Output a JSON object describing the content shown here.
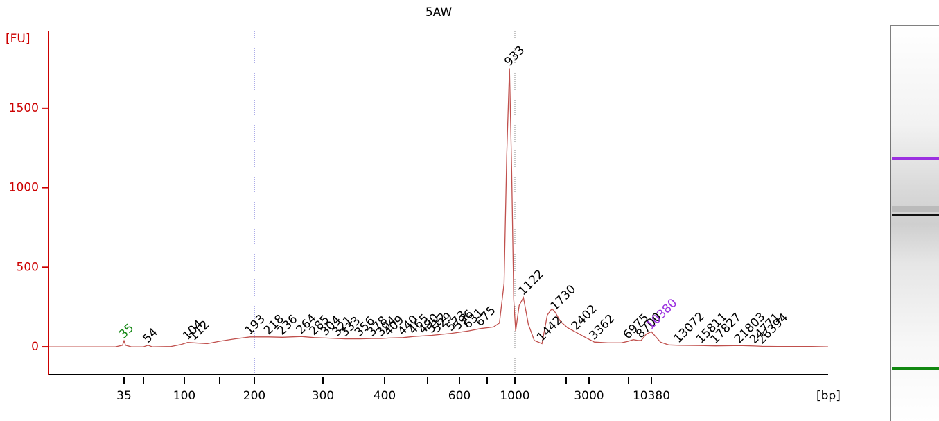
{
  "chart_data": {
    "type": "line",
    "title": "5AW",
    "y_label": "[FU]",
    "x_label": "[bp]",
    "xlim": [
      9,
      46000
    ],
    "ylim": [
      -174,
      1983
    ],
    "yticks": [
      0,
      500,
      1000,
      1500
    ],
    "xticks": [
      35,
      {
        "value": 50,
        "label": null
      },
      100,
      {
        "value": 150,
        "label": null
      },
      200,
      300,
      400,
      {
        "value": 500,
        "label": null
      },
      600,
      {
        "value": 700,
        "label": null
      },
      1000,
      {
        "value": 2000,
        "label": null
      },
      3000,
      {
        "value": 7000,
        "label": null
      },
      10380
    ],
    "region_lines": [
      200,
      1000
    ],
    "series": [
      {
        "color": "#c0504d",
        "x": [
          9,
          30,
          34,
          35,
          36,
          40,
          50,
          54,
          58,
          80,
          95,
          104,
          112,
          130,
          150,
          170,
          193,
          218,
          236,
          264,
          285,
          304,
          321,
          333,
          356,
          378,
          394,
          409,
          440,
          465,
          512,
          573,
          631,
          675,
          760,
          820,
          870,
          900,
          933,
          960,
          985,
          1010,
          1060,
          1122,
          1200,
          1300,
          1442,
          1550,
          1650,
          1730,
          1850,
          2050,
          2402,
          2800,
          3362,
          4500,
          6000,
          6975,
          7600,
          8200,
          8700,
          9500,
          10380,
          11200,
          12000,
          13072,
          15811,
          17827,
          21803,
          24771,
          26394,
          30000,
          40000,
          46000
        ],
        "values": [
          0,
          0,
          10,
          38,
          10,
          0,
          0,
          10,
          0,
          2,
          15,
          28,
          25,
          20,
          35,
          50,
          62,
          62,
          60,
          65,
          58,
          55,
          52,
          50,
          50,
          52,
          52,
          55,
          58,
          65,
          72,
          85,
          100,
          115,
          125,
          150,
          400,
          1200,
          1750,
          1100,
          300,
          100,
          260,
          310,
          140,
          40,
          20,
          200,
          240,
          215,
          160,
          120,
          90,
          60,
          30,
          25,
          25,
          35,
          45,
          40,
          40,
          80,
          95,
          30,
          12,
          10,
          8,
          6,
          8,
          5,
          3,
          2,
          2,
          0
        ]
      }
    ],
    "peaks": {
      "x": [
        35,
        54,
        104,
        112,
        193,
        218,
        236,
        264,
        285,
        304,
        321,
        333,
        356,
        378,
        394,
        409,
        440,
        465,
        490,
        512,
        529,
        573,
        596,
        631,
        675,
        933,
        1122,
        1442,
        1730,
        2402,
        3362,
        6975,
        8700,
        10380,
        13072,
        15811,
        17827,
        21803,
        24771,
        26394
      ],
      "values": [
        38,
        10,
        28,
        25,
        62,
        62,
        60,
        65,
        58,
        55,
        52,
        50,
        50,
        52,
        52,
        55,
        58,
        65,
        68,
        72,
        75,
        85,
        92,
        100,
        115,
        1750,
        310,
        20,
        215,
        90,
        30,
        35,
        40,
        95,
        10,
        8,
        6,
        8,
        5,
        3
      ],
      "colors": [
        "#1a8a1a",
        "#000000",
        "#000000",
        "#000000",
        "#000000",
        "#000000",
        "#000000",
        "#000000",
        "#000000",
        "#000000",
        "#000000",
        "#000000",
        "#000000",
        "#000000",
        "#000000",
        "#000000",
        "#000000",
        "#000000",
        "#000000",
        "#000000",
        "#000000",
        "#000000",
        "#000000",
        "#000000",
        "#000000",
        "#000000",
        "#000000",
        "#000000",
        "#000000",
        "#000000",
        "#000000",
        "#000000",
        "#000000",
        "#9b30e0",
        "#000000",
        "#000000",
        "#000000",
        "#000000",
        "#000000",
        "#000000"
      ]
    }
  }
}
